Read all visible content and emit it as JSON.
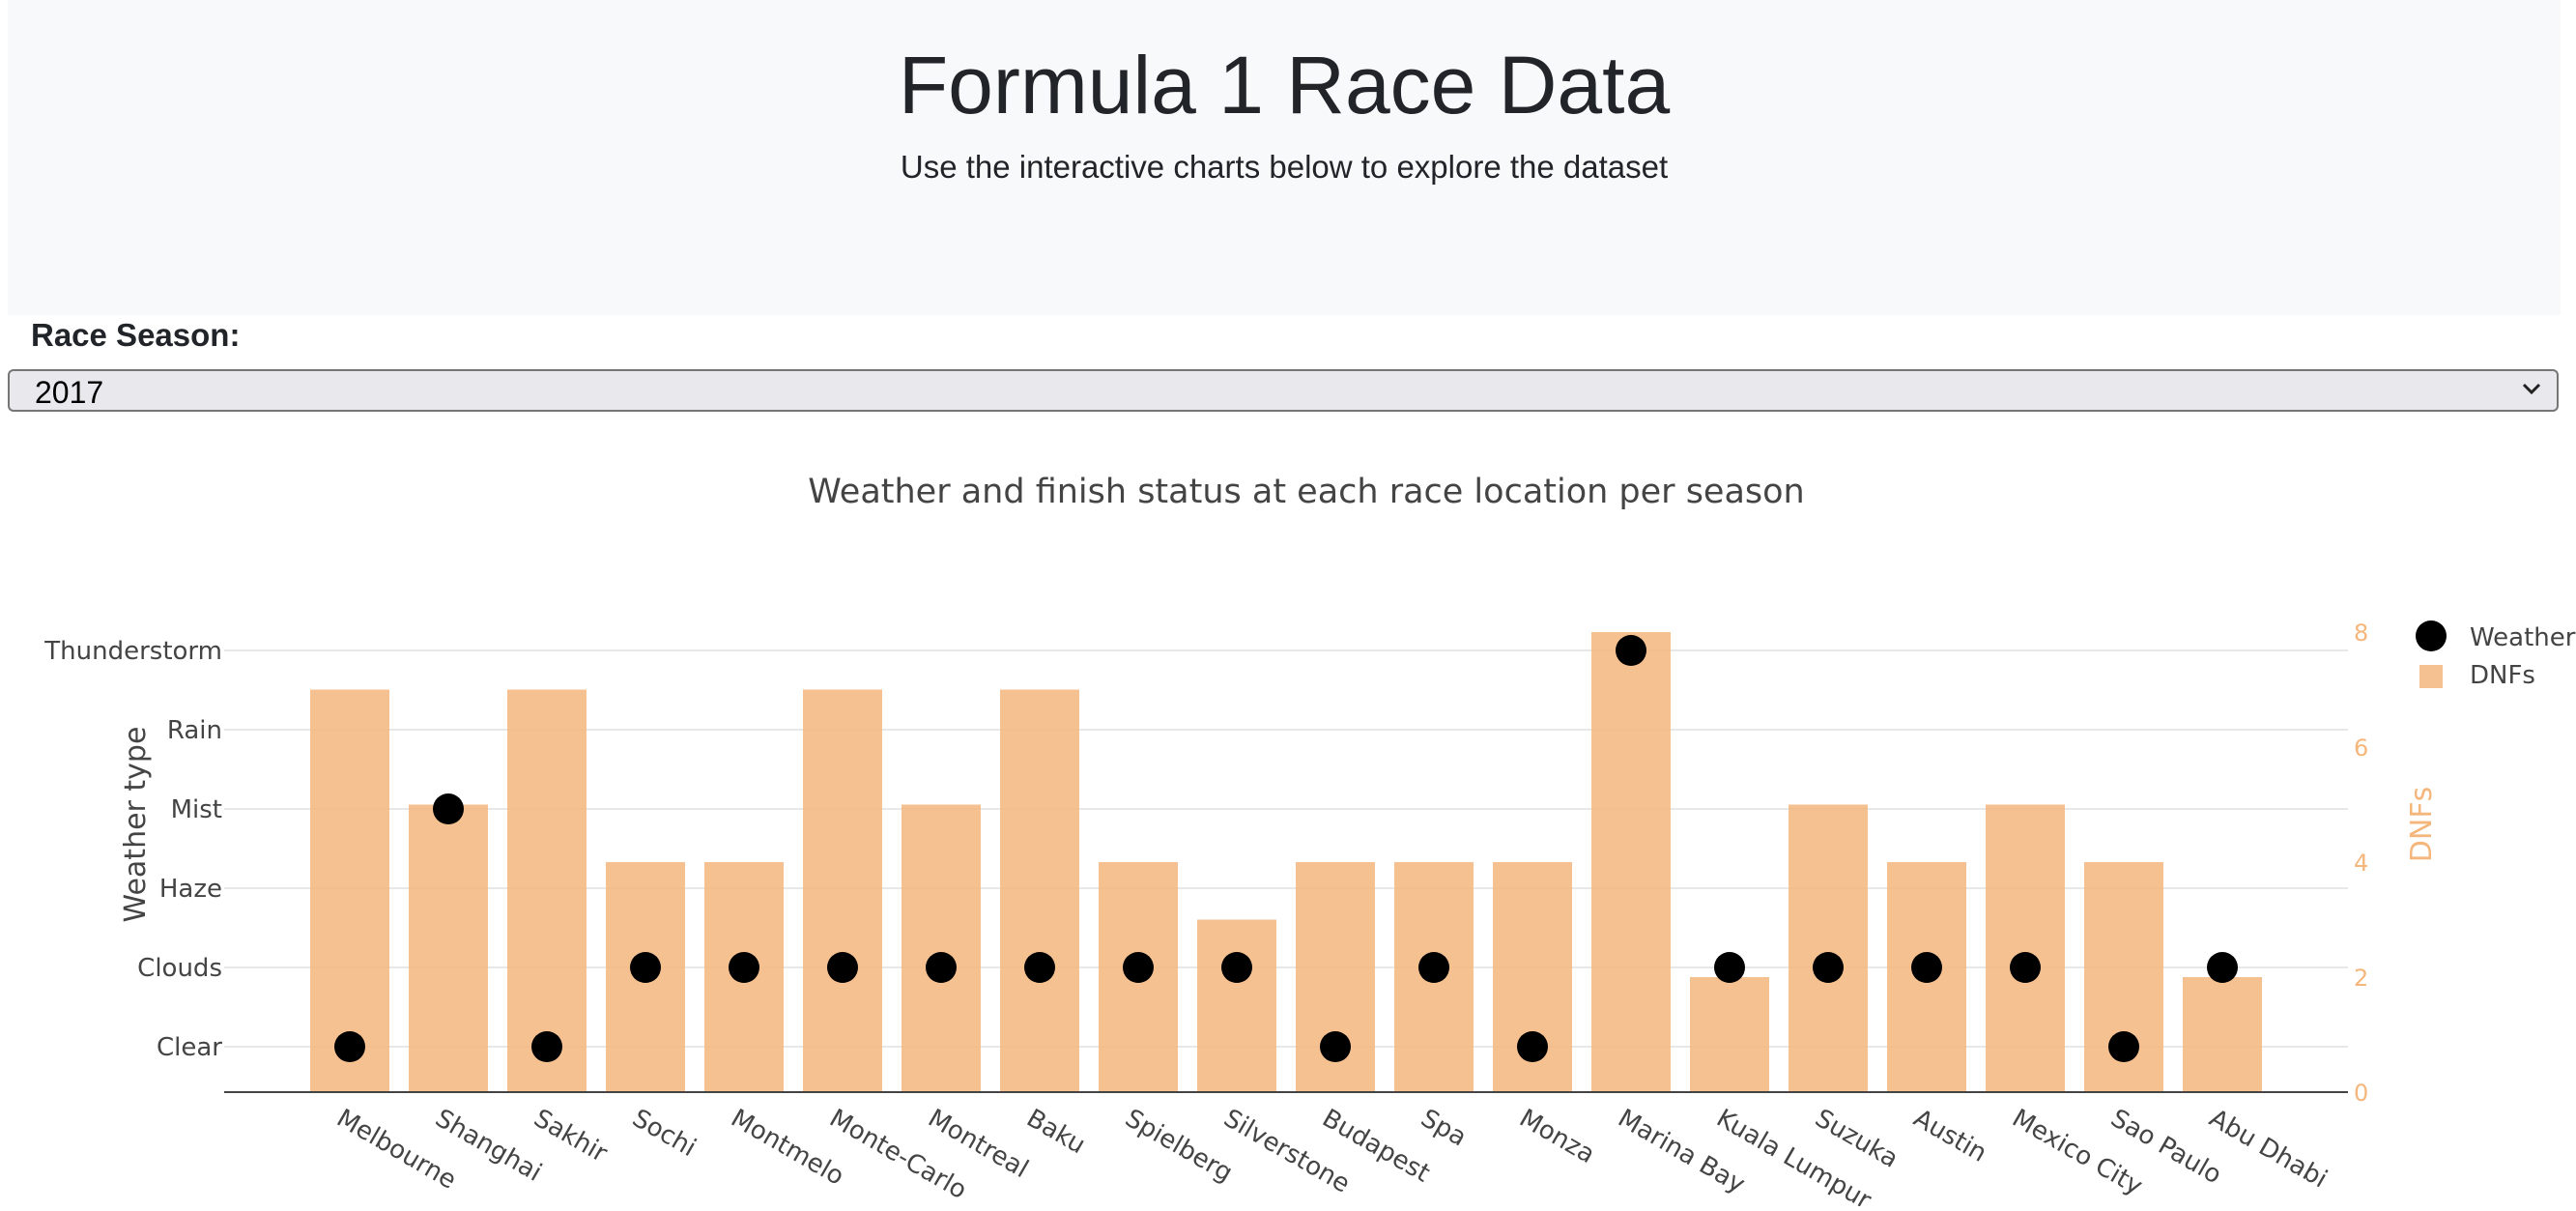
{
  "header": {
    "title": "Formula 1 Race Data",
    "subtitle": "Use the interactive charts below to explore the dataset"
  },
  "season_select": {
    "label": "Race Season:",
    "value": "2017"
  },
  "colors": {
    "bar": "#f5b67c",
    "marker": "#000000",
    "right_axis": "#f5b67c",
    "hero_bg": "#f8f9fa"
  },
  "chart_data": {
    "type": "bar",
    "title": "Weather and finish status at each race location per season",
    "categories": [
      "Melbourne",
      "Shanghai",
      "Sakhir",
      "Sochi",
      "Montmelo",
      "Monte-Carlo",
      "Montreal",
      "Baku",
      "Spielberg",
      "Silverstone",
      "Budapest",
      "Spa",
      "Monza",
      "Marina Bay",
      "Kuala Lumpur",
      "Suzuka",
      "Austin",
      "Mexico City",
      "Sao Paulo",
      "Abu Dhabi"
    ],
    "y_left": {
      "label": "Weather type",
      "categories": [
        "Clear",
        "Clouds",
        "Haze",
        "Mist",
        "Rain",
        "Thunderstorm"
      ]
    },
    "y_right": {
      "label": "DNFs",
      "range": [
        0,
        8
      ],
      "ticks": [
        0,
        2,
        4,
        6,
        8
      ]
    },
    "grid": true,
    "legend_position": "top-right",
    "series": [
      {
        "name": "Weather",
        "type": "scatter",
        "axis": "left",
        "values": [
          "Clear",
          "Mist",
          "Clear",
          "Clouds",
          "Clouds",
          "Clouds",
          "Clouds",
          "Clouds",
          "Clouds",
          "Clouds",
          "Clear",
          "Clouds",
          "Clear",
          "Thunderstorm",
          "Clouds",
          "Clouds",
          "Clouds",
          "Clouds",
          "Clear",
          "Clouds"
        ]
      },
      {
        "name": "DNFs",
        "type": "bar",
        "axis": "right",
        "values": [
          7,
          5,
          7,
          4,
          4,
          7,
          5,
          7,
          4,
          3,
          4,
          4,
          4,
          8,
          2,
          5,
          4,
          5,
          4,
          2
        ]
      }
    ]
  }
}
